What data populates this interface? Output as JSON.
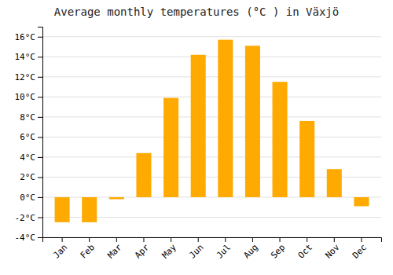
{
  "chart_data": {
    "type": "bar",
    "title": "Average monthly temperatures (°C ) in Växjö",
    "categories": [
      "Jan",
      "Feb",
      "Mar",
      "Apr",
      "May",
      "Jun",
      "Jul",
      "Aug",
      "Sep",
      "Oct",
      "Nov",
      "Dec"
    ],
    "values": [
      -2.5,
      -2.5,
      -0.2,
      4.4,
      9.9,
      14.2,
      15.7,
      15.1,
      11.5,
      7.6,
      2.8,
      -0.9
    ],
    "color": "#FFAA00",
    "ylim": [
      -4,
      17
    ],
    "yticks": [
      {
        "value": -4,
        "label": "-4°C"
      },
      {
        "value": -2,
        "label": "-2°C"
      },
      {
        "value": 0,
        "label": "0°C"
      },
      {
        "value": 2,
        "label": "2°C"
      },
      {
        "value": 4,
        "label": "4°C"
      },
      {
        "value": 6,
        "label": "6°C"
      },
      {
        "value": 8,
        "label": "8°C"
      },
      {
        "value": 10,
        "label": "10°C"
      },
      {
        "value": 12,
        "label": "12°C"
      },
      {
        "value": 14,
        "label": "14°C"
      },
      {
        "value": 16,
        "label": "16°C"
      }
    ],
    "grid": true
  }
}
